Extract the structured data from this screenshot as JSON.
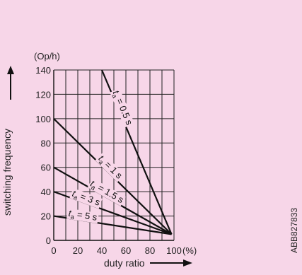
{
  "chart_data": {
    "type": "line",
    "title": "",
    "xlabel": "duty ratio",
    "x_unit": "(%)",
    "ylabel": "switching frequency",
    "y_unit": "(Op/h)",
    "xlim": [
      0,
      100
    ],
    "ylim": [
      0,
      140
    ],
    "x_ticks": [
      0,
      20,
      40,
      60,
      80,
      100
    ],
    "y_ticks": [
      0,
      20,
      40,
      60,
      80,
      100,
      120,
      140
    ],
    "grid": true,
    "series": [
      {
        "name": "ta = 0.5 s",
        "label_main": "t",
        "label_sub": "a",
        "label_rest": " = 0.5 s",
        "points": [
          [
            40,
            140
          ],
          [
            98,
            5
          ]
        ]
      },
      {
        "name": "ta = 1 s",
        "label_main": "t",
        "label_sub": "a",
        "label_rest": " = 1 s",
        "points": [
          [
            0,
            100
          ],
          [
            98,
            5
          ]
        ]
      },
      {
        "name": "ta = 1.5 s",
        "label_main": "t",
        "label_sub": "a",
        "label_rest": " = 1.5 s",
        "points": [
          [
            0,
            60
          ],
          [
            98,
            5
          ]
        ]
      },
      {
        "name": "ta = 3 s",
        "label_main": "t",
        "label_sub": "a",
        "label_rest": " = 3 s",
        "points": [
          [
            0,
            40
          ],
          [
            98,
            5
          ]
        ]
      },
      {
        "name": "ta = 5 s",
        "label_main": "t",
        "label_sub": "a",
        "label_rest": " = 5 s",
        "points": [
          [
            0,
            20
          ],
          [
            98,
            5
          ]
        ]
      }
    ],
    "side_code": "ABB827833"
  }
}
